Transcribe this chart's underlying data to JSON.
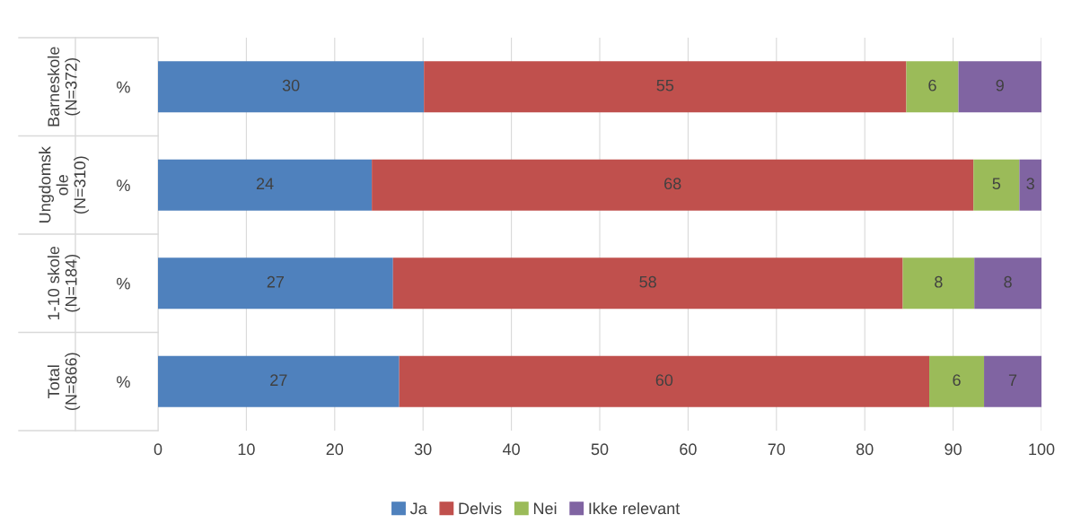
{
  "chart_data": {
    "type": "bar",
    "orientation": "horizontal",
    "stacked": true,
    "categories": [
      "%",
      "%",
      "%",
      "%"
    ],
    "annotations": [
      "Barneskole\n(N=372)",
      "Ungdomsk\nole\n(N=310)",
      "1-10 skole\n(N=184)",
      "Total\n(N=866)"
    ],
    "series": [
      {
        "name": "Ja",
        "color": "#4f81bd",
        "values": [
          30.1,
          24.2,
          26.6,
          27.3
        ],
        "value_labels": [
          "30",
          "24",
          "27",
          "27"
        ]
      },
      {
        "name": "Delvis",
        "color": "#c0504d",
        "values": [
          54.6,
          68.1,
          57.7,
          60.0
        ],
        "value_labels": [
          "55",
          "68",
          "58",
          "60"
        ]
      },
      {
        "name": "Nei",
        "color": "#9bbb59",
        "values": [
          5.9,
          5.2,
          8.1,
          6.2
        ],
        "value_labels": [
          "6",
          "5",
          "8",
          "6"
        ]
      },
      {
        "name": "Ikke relevant",
        "color": "#8064a2",
        "values": [
          9.4,
          2.5,
          7.6,
          6.5
        ],
        "value_labels": [
          "9",
          "3",
          "8",
          "7"
        ]
      }
    ],
    "xlim": [
      0,
      100
    ],
    "xticks": [
      0,
      10,
      20,
      30,
      40,
      50,
      60,
      70,
      80,
      90,
      100
    ],
    "grid": "x",
    "legend": "bottom"
  }
}
